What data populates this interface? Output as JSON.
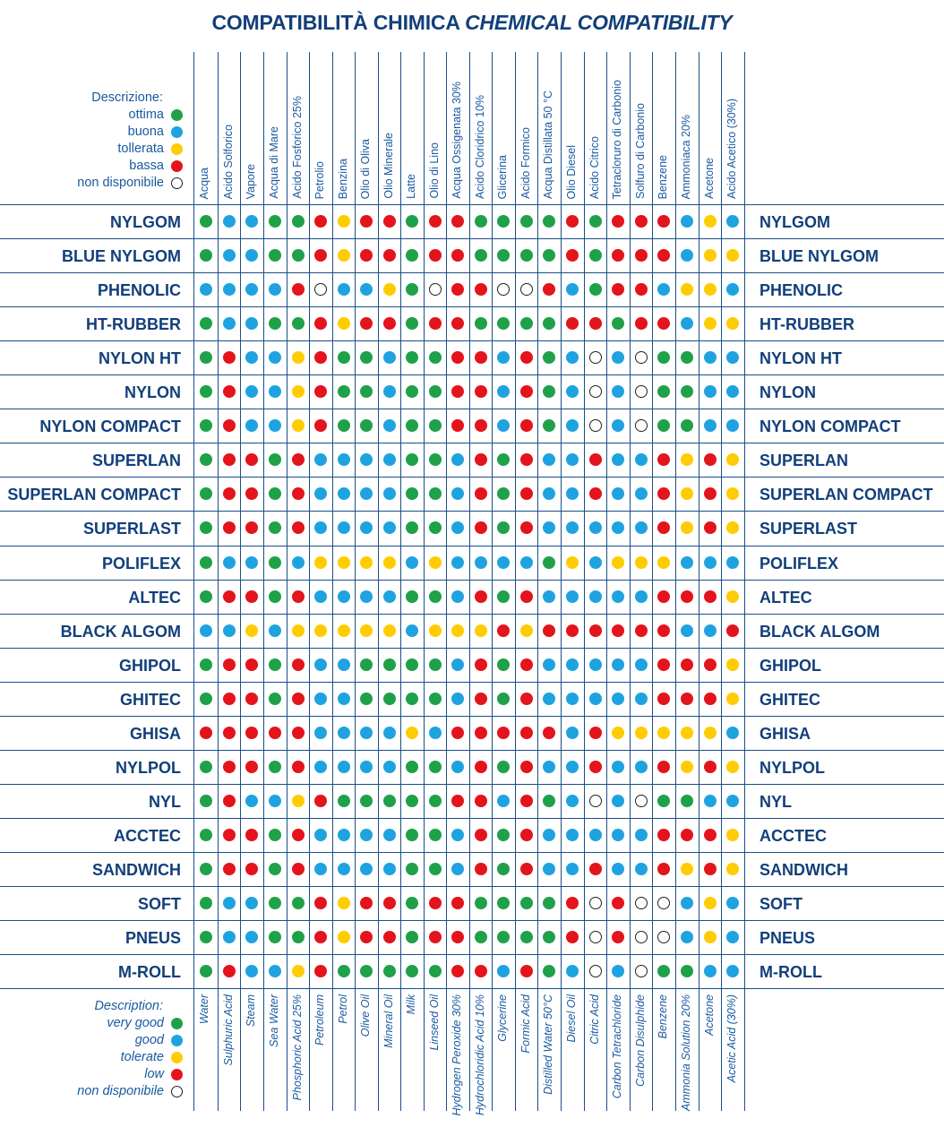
{
  "title": {
    "it": "COMPATIBILITÀ CHIMICA",
    "en": "CHEMICAL COMPATIBILITY"
  },
  "colors": {
    "ottima": "#1fa14a",
    "buona": "#1fa3e0",
    "tollerata": "#ffcc00",
    "bassa": "#e3141c",
    "nd": "#ffffff",
    "text": "#123f7a",
    "line": "#1a4f8a"
  },
  "legend_top": {
    "heading": "Descrizione:",
    "items": [
      {
        "label": "ottima",
        "code": "G"
      },
      {
        "label": "buona",
        "code": "B"
      },
      {
        "label": "tollerata",
        "code": "Y"
      },
      {
        "label": "bassa",
        "code": "R"
      },
      {
        "label": "non disponibile",
        "code": "O"
      }
    ]
  },
  "legend_bottom": {
    "heading": "Description:",
    "items": [
      {
        "label": "very good",
        "code": "G"
      },
      {
        "label": "good",
        "code": "B"
      },
      {
        "label": "tolerate",
        "code": "Y"
      },
      {
        "label": "low",
        "code": "R"
      },
      {
        "label": "non disponibile",
        "code": "O"
      }
    ]
  },
  "columns_it": [
    "Acqua",
    "Acido Solforico",
    "Vapore",
    "Acqua di Mare",
    "Acido Fosforico 25%",
    "Petrolio",
    "Benzina",
    "Olio di Oliva",
    "Olio Minerale",
    "Latte",
    "Olio di Lino",
    "Acqua Ossigenata 30%",
    "Acido Cloridrico 10%",
    "Glicerina",
    "Acido Formico",
    "Acqua Distillata 50 °C",
    "Olio Diesel",
    "Acido Citrico",
    "Tetracloruro di Carbonio",
    "Solfuro di Carbonio",
    "Benzene",
    "Ammoniaca 20%",
    "Acetone",
    "Acido Acetico (30%)"
  ],
  "columns_en": [
    "Water",
    "Sulphuric Acid",
    "Steam",
    "Sea Water",
    "Phosphoric Acid 25%",
    "Petroleum",
    "Petrol",
    "Olive Oil",
    "Mineral Oil",
    "Milk",
    "Linseed Oil",
    "Hydrogen Peroxide 30%",
    "Hydrochloridic Acid 10%",
    "Glycerine",
    "Formic Acid",
    "Distilled Water 50°C",
    "Diesel Oil",
    "Citric Acid",
    "Carbon Tetrachloride",
    "Carbon Disulphide",
    "Benzene",
    "Ammonia Solution 20%",
    "Acetone",
    "Acetic Acid (30%)"
  ],
  "rows": [
    {
      "name": "NYLGOM",
      "ratings": "GBBGGRYRRGRRGGGGRGRRRBYB"
    },
    {
      "name": "BLUE NYLGOM",
      "ratings": "GBBGGRYRRGRRGGGGRGRRRBYY"
    },
    {
      "name": "PHENOLIC",
      "ratings": "BBBBROBBYGORROORBGRRBYYB"
    },
    {
      "name": "HT-RUBBER",
      "ratings": "GBBGGRYRRGRRGGGGRRGRRBYY"
    },
    {
      "name": "NYLON HT",
      "ratings": "GRBBYRGGBGGRRBRGBOBOGGBB"
    },
    {
      "name": "NYLON",
      "ratings": "GRBBYRGGBGGRRBRGBOBOGGBB"
    },
    {
      "name": "NYLON COMPACT",
      "ratings": "GRBBYRGGBGGRRBRGBOBOGGBB"
    },
    {
      "name": "SUPERLAN",
      "ratings": "GRRGRBBBBGGBRGRBBRBBRYRY"
    },
    {
      "name": "SUPERLAN COMPACT",
      "ratings": "GRRGRBBBBGGBRGRBBRBBRYRY"
    },
    {
      "name": "SUPERLAST",
      "ratings": "GRRGRBBBBGGBRGRBBBBBRYRY"
    },
    {
      "name": "POLIFLEX",
      "ratings": "GBBGBYYYYBYBBBBGYBYYYBBB"
    },
    {
      "name": "ALTEC",
      "ratings": "GRRGRBBBBGGBRGRBBBBBRRRY"
    },
    {
      "name": "BLACK ALGOM",
      "ratings": "BBYBYYYYYBYYYRYRRRRRRBBR"
    },
    {
      "name": "GHIPOL",
      "ratings": "GRRGRBBGGGGBRGRBBBBBRRRY"
    },
    {
      "name": "GHITEC",
      "ratings": "GRRGRBBGGGGBRGRBBBBBRRRY"
    },
    {
      "name": "GHISA",
      "ratings": "RRRRRBBBBYBRRRRRBRYYYYYB"
    },
    {
      "name": "NYLPOL",
      "ratings": "GRRGRBBBBGGBRGRBBRBBRYRY"
    },
    {
      "name": "NYL",
      "ratings": "GRBBYRGGGGGRRBRGBOBOGGBB"
    },
    {
      "name": "ACCTEC",
      "ratings": "GRRGRBBBBGGBRGRBBBBBRRRY"
    },
    {
      "name": "SANDWICH",
      "ratings": "GRRGRBBBBGGBRGRBBRBBRYRY"
    },
    {
      "name": "SOFT",
      "ratings": "GBBGGRYRRGRRGGGGROROOBYB"
    },
    {
      "name": "PNEUS",
      "ratings": "GBBGGRYRRGRRGGGGROROOBYB"
    },
    {
      "name": "M-ROLL",
      "ratings": "GRBBYRGGGGGRRBRGBOBOGGBB"
    }
  ]
}
